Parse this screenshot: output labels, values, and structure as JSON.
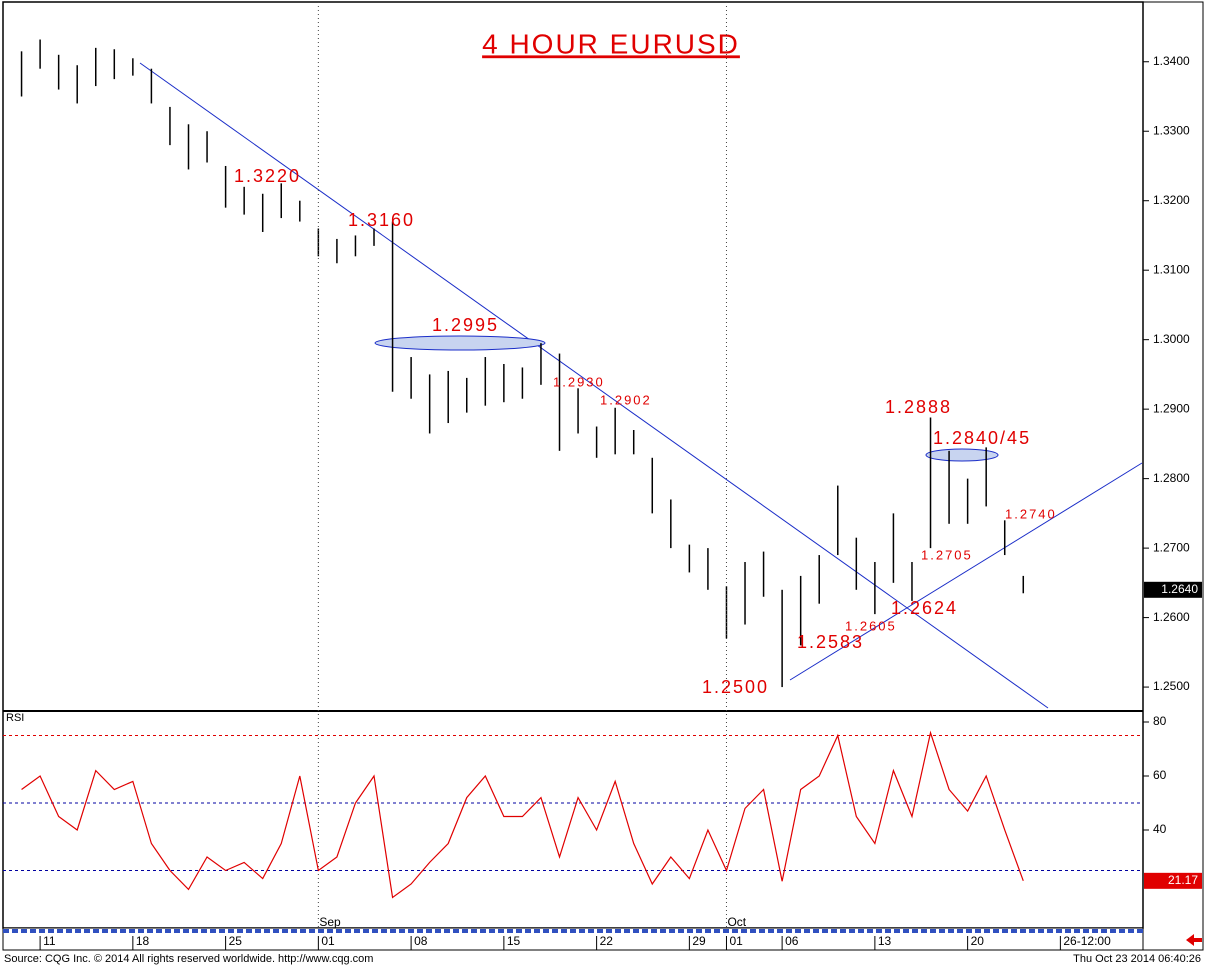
{
  "chart_data": [
    {
      "type": "range-bar",
      "title": "4 HOUR EURUSD",
      "color": "#000000",
      "x": [
        -1,
        0,
        1,
        2,
        3,
        4,
        5,
        6,
        7,
        8,
        9,
        10,
        11,
        12,
        13,
        14,
        15,
        16,
        17,
        18,
        19,
        20,
        21,
        22,
        23,
        24,
        25,
        26,
        27,
        28,
        29,
        30,
        31,
        32,
        33,
        34,
        35,
        36,
        37,
        38,
        39,
        40,
        41,
        42,
        43,
        44,
        45,
        46,
        47,
        48,
        49,
        50,
        51,
        52,
        53
      ],
      "low": [
        1.335,
        1.339,
        1.336,
        1.334,
        1.3365,
        1.3375,
        1.338,
        1.334,
        1.328,
        1.3245,
        1.3255,
        1.319,
        1.318,
        1.3155,
        1.3175,
        1.317,
        1.312,
        1.311,
        1.312,
        1.3135,
        1.2925,
        1.2915,
        1.2865,
        1.288,
        1.2895,
        1.2905,
        1.291,
        1.2915,
        1.2935,
        1.284,
        1.2865,
        1.283,
        1.2835,
        1.2835,
        1.275,
        1.27,
        1.2665,
        1.264,
        1.257,
        1.259,
        1.263,
        1.25,
        1.256,
        1.262,
        1.269,
        1.264,
        1.2605,
        1.265,
        1.2624,
        1.27,
        1.2735,
        1.2735,
        1.276,
        1.269,
        1.2635
      ],
      "high": [
        1.3415,
        1.3432,
        1.341,
        1.3395,
        1.342,
        1.3418,
        1.3405,
        1.339,
        1.3335,
        1.331,
        1.33,
        1.325,
        1.322,
        1.321,
        1.3225,
        1.32,
        1.316,
        1.3145,
        1.315,
        1.316,
        1.317,
        1.2975,
        1.295,
        1.2955,
        1.2945,
        1.2975,
        1.2965,
        1.296,
        1.2995,
        1.298,
        1.293,
        1.2875,
        1.2902,
        1.287,
        1.283,
        1.277,
        1.2705,
        1.27,
        1.2645,
        1.268,
        1.2695,
        1.264,
        1.266,
        1.269,
        1.279,
        1.2715,
        1.268,
        1.275,
        1.268,
        1.2888,
        1.284,
        1.28,
        1.2845,
        1.274,
        1.266
      ],
      "xlim": [
        -2,
        59.4
      ],
      "ylim": [
        1.2467,
        1.3486
      ],
      "yticks": [
        {
          "value": 1.25,
          "label": "1.2500"
        },
        {
          "value": 1.26,
          "label": "1.2600"
        },
        {
          "value": 1.27,
          "label": "1.2700"
        },
        {
          "value": 1.28,
          "label": "1.2800"
        },
        {
          "value": 1.29,
          "label": "1.2900"
        },
        {
          "value": 1.3,
          "label": "1.3000"
        },
        {
          "value": 1.31,
          "label": "1.3100"
        },
        {
          "value": 1.32,
          "label": "1.3200"
        },
        {
          "value": 1.33,
          "label": "1.3300"
        },
        {
          "value": 1.34,
          "label": "1.3400"
        }
      ],
      "xticks": [
        {
          "value": 0,
          "label": "11"
        },
        {
          "value": 5,
          "label": "18"
        },
        {
          "value": 10,
          "label": "25"
        },
        {
          "value": 15,
          "label": "01"
        },
        {
          "value": 20,
          "label": "08"
        },
        {
          "value": 25,
          "label": "15"
        },
        {
          "value": 30,
          "label": "22"
        },
        {
          "value": 35,
          "label": "29"
        },
        {
          "value": 37,
          "label": "01"
        },
        {
          "value": 40,
          "label": "06"
        },
        {
          "value": 45,
          "label": "13"
        },
        {
          "value": 50,
          "label": "20"
        },
        {
          "value": 55,
          "label": "26-12:00"
        }
      ],
      "months": [
        {
          "value": 15,
          "label": "Sep"
        },
        {
          "value": 37,
          "label": "Oct"
        }
      ],
      "last_value": {
        "value": 1.264,
        "label": "1.2640"
      },
      "annotations": [
        "1.3220",
        "1.3160",
        "1.2995",
        "1.2930",
        "1.2902",
        "1.2888",
        "1.2840/45",
        "1.2740",
        "1.2705",
        "1.2624",
        "1.2605",
        "1.2583",
        "1.2500"
      ],
      "source": "Source: CQG Inc. © 2014 All rights reserved worldwide. http://www.cqg.com",
      "timestamp": "Thu Oct 23 2014 06:40:26"
    },
    {
      "type": "line",
      "title": "RSI",
      "color": "#e00000",
      "x": [
        -1,
        0,
        1,
        2,
        3,
        4,
        5,
        6,
        7,
        8,
        9,
        10,
        11,
        12,
        13,
        14,
        15,
        16,
        17,
        18,
        19,
        20,
        21,
        22,
        23,
        24,
        25,
        26,
        27,
        28,
        29,
        30,
        31,
        32,
        33,
        34,
        35,
        36,
        37,
        38,
        39,
        40,
        41,
        42,
        43,
        44,
        45,
        46,
        47,
        48,
        49,
        50,
        51,
        52,
        53
      ],
      "values": [
        55,
        60,
        45,
        40,
        62,
        55,
        58,
        35,
        25,
        18,
        30,
        25,
        28,
        22,
        35,
        60,
        25,
        30,
        50,
        60,
        15,
        20,
        28,
        35,
        52,
        60,
        45,
        45,
        52,
        30,
        52,
        40,
        58,
        35,
        20,
        30,
        22,
        40,
        25,
        48,
        55,
        21,
        55,
        60,
        75,
        45,
        35,
        62,
        45,
        76,
        55,
        47,
        60,
        40,
        21.17
      ],
      "xlim": [
        -2,
        59.4
      ],
      "ylim": [
        3.7,
        83.7
      ],
      "yticks": [
        40,
        60,
        80
      ],
      "levels": [
        {
          "value": 75,
          "color": "#e00000"
        },
        {
          "value": 50,
          "color": "#0000a0"
        },
        {
          "value": 25,
          "color": "#0000a0"
        }
      ],
      "last_value": 21.17
    }
  ]
}
